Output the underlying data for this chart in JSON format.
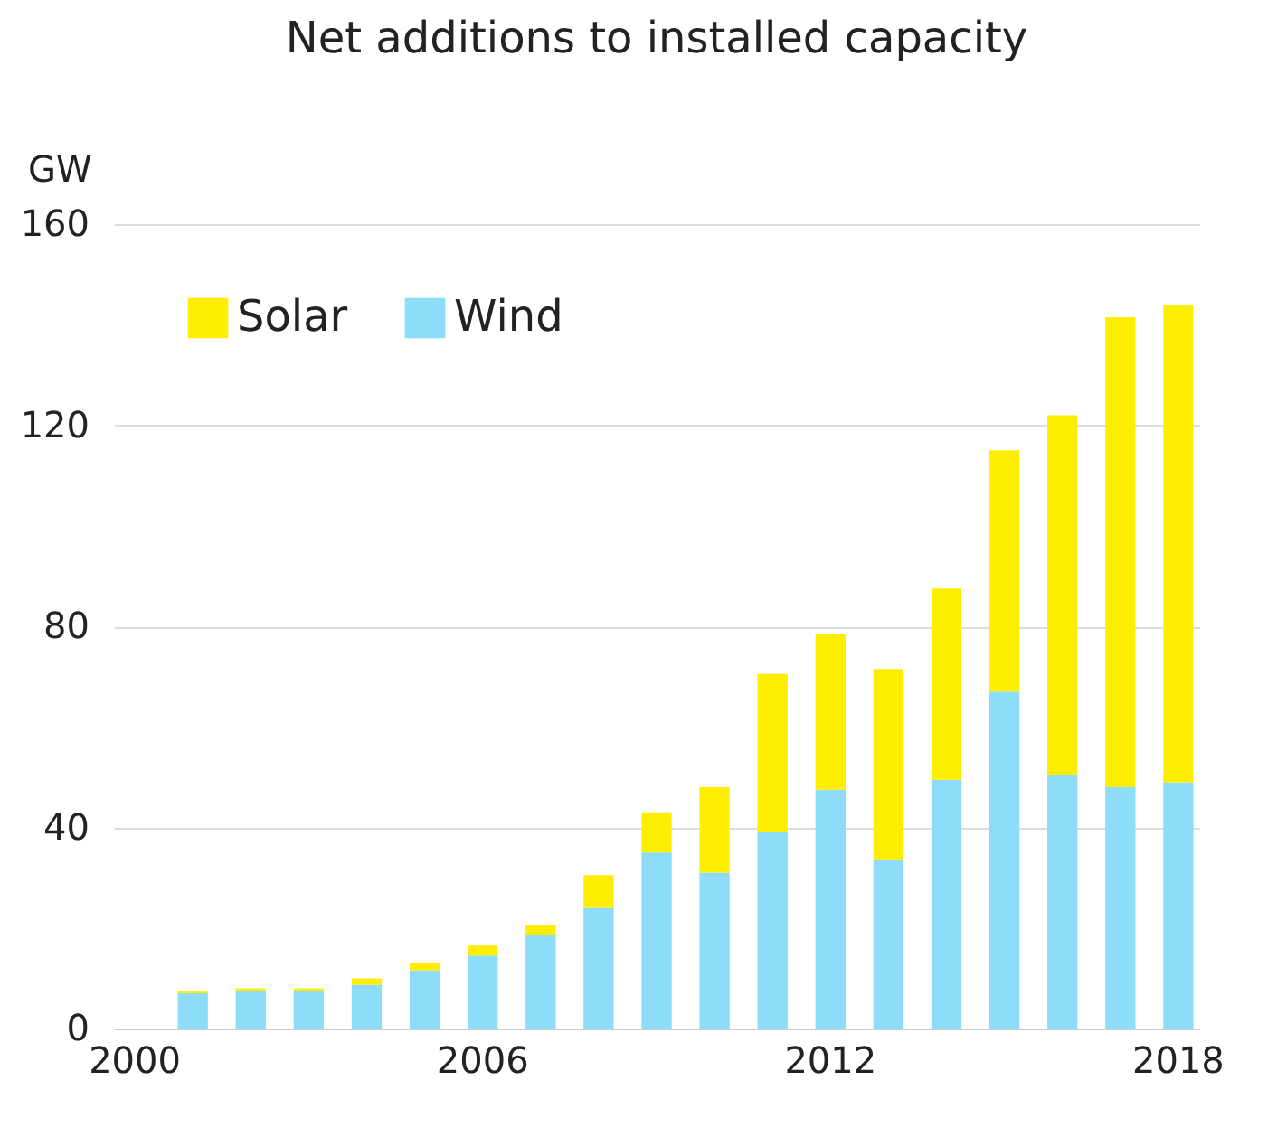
{
  "chart_data": {
    "type": "bar",
    "title": "Net additions to installed capacity",
    "ylabel": "GW",
    "stacked": true,
    "categories": [
      "2000",
      null,
      null,
      null,
      null,
      null,
      "2006",
      null,
      null,
      null,
      null,
      null,
      "2012",
      null,
      null,
      null,
      null,
      null,
      "2018"
    ],
    "series": [
      {
        "name": "Wind",
        "color": "#8ddcf8",
        "values": [
          null,
          7,
          7.5,
          7.5,
          8.7,
          11.6,
          14.5,
          18.6,
          24,
          35,
          31,
          39,
          47.5,
          33.5,
          49.5,
          67,
          50.5,
          48,
          49
        ]
      },
      {
        "name": "Solar",
        "color": "#ffee00",
        "values": [
          null,
          0.5,
          0.5,
          0.5,
          1.3,
          1.4,
          2,
          2,
          6.5,
          8,
          17,
          31.5,
          31,
          38,
          38,
          48,
          71.5,
          93.5,
          95
        ]
      }
    ],
    "ylim": [
      0,
      160
    ],
    "yticks": [
      0,
      40,
      80,
      120,
      160
    ],
    "grid": "y",
    "legend": "top left"
  }
}
